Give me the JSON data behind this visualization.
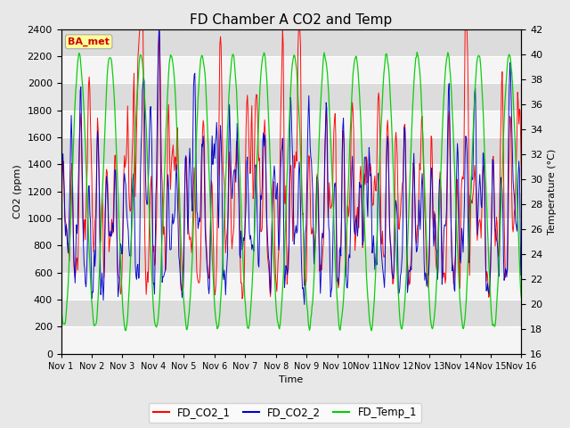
{
  "title": "FD Chamber A CO2 and Temp",
  "xlabel": "Time",
  "ylabel_left": "CO2 (ppm)",
  "ylabel_right": "Temperature (°C)",
  "ylim_left": [
    0,
    2400
  ],
  "ylim_right": [
    16,
    42
  ],
  "yticks_left": [
    0,
    200,
    400,
    600,
    800,
    1000,
    1200,
    1400,
    1600,
    1800,
    2000,
    2200,
    2400
  ],
  "yticks_right": [
    16,
    18,
    20,
    22,
    24,
    26,
    28,
    30,
    32,
    34,
    36,
    38,
    40,
    42
  ],
  "xtick_labels": [
    "Nov 1",
    "Nov 2",
    "Nov 3",
    "Nov 4",
    "Nov 5",
    "Nov 6",
    "Nov 7",
    "Nov 8",
    "Nov 9",
    "Nov 10",
    "Nov 11",
    "Nov 12",
    "Nov 13",
    "Nov 14",
    "Nov 15",
    "Nov 16"
  ],
  "legend_labels": [
    "FD_CO2_1",
    "FD_CO2_2",
    "FD_Temp_1"
  ],
  "legend_colors": [
    "#ff0000",
    "#0000cc",
    "#00cc00"
  ],
  "annotation_text": "BA_met",
  "annotation_color": "#cc0000",
  "annotation_bg": "#ffff99",
  "background_color": "#e8e8e8",
  "band_light": "#f5f5f5",
  "band_dark": "#dcdcdc",
  "title_fontsize": 11,
  "label_fontsize": 8,
  "tick_fontsize": 8
}
